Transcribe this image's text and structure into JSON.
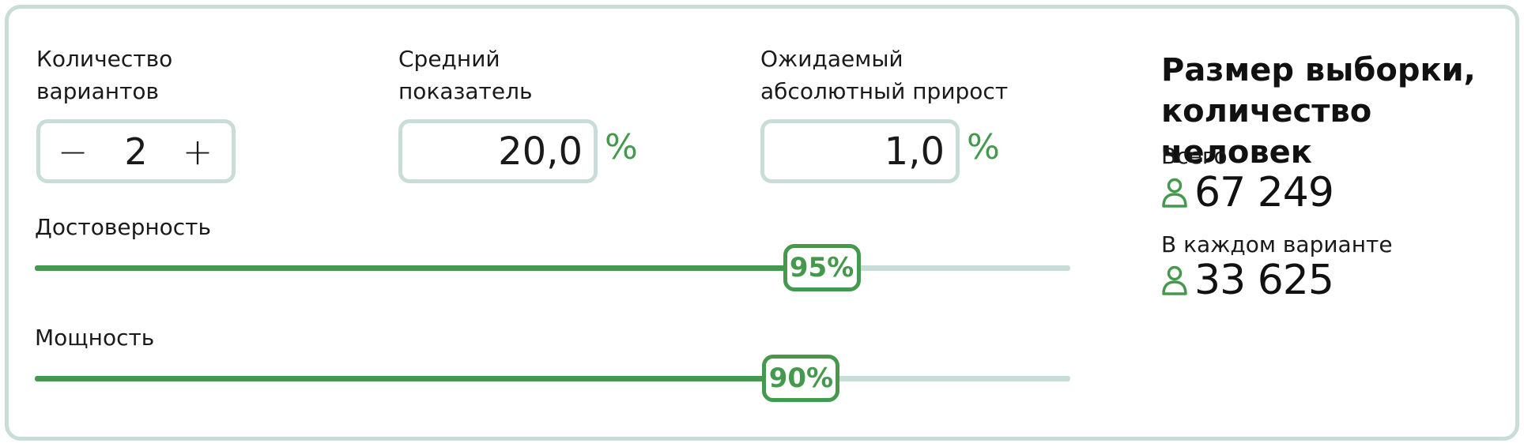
{
  "variants": {
    "label": "Количество вариантов",
    "minus": "−",
    "value": "2",
    "plus": "+"
  },
  "average": {
    "label": "Средний показатель",
    "value": "20,0",
    "unit": "%"
  },
  "growth": {
    "label": "Ожидаемый абсолютный прирост",
    "value": "1,0",
    "unit": "%"
  },
  "confidence": {
    "label": "Достоверность",
    "value_text": "95%",
    "level": 0.76
  },
  "power": {
    "label": "Мощность",
    "value_text": "90%",
    "level": 0.74
  },
  "results": {
    "title": "Размер выборки, количество человек",
    "total_label": "Всего",
    "total_value": "67 249",
    "per_variant_label": "В каждом варианте",
    "per_variant_value": "33 625"
  },
  "colors": {
    "accent": "#45994d",
    "border": "#c9ddd8"
  },
  "icons": {
    "person": "person-icon"
  }
}
